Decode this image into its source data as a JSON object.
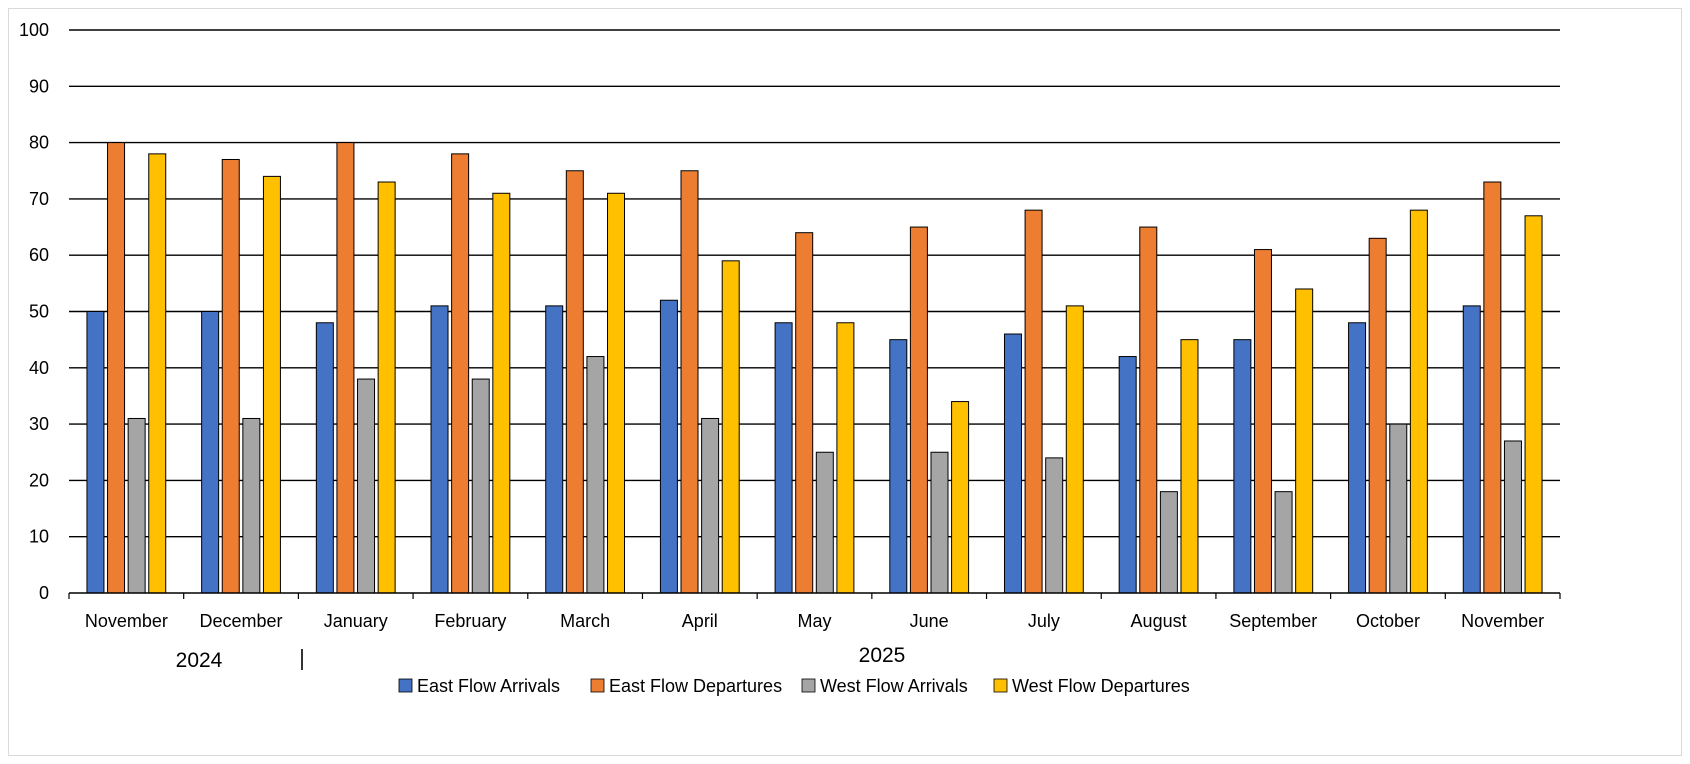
{
  "chart_data": {
    "type": "bar",
    "categories": [
      "November",
      "December",
      "January",
      "February",
      "March",
      "April",
      "May",
      "June",
      "July",
      "August",
      "September",
      "October",
      "November"
    ],
    "year_labels": [
      "2024",
      "2025"
    ],
    "series": [
      {
        "name": "East Flow Arrivals",
        "color": "#4472C4",
        "values": [
          50,
          50,
          48,
          51,
          51,
          52,
          48,
          45,
          46,
          42,
          45,
          48,
          51
        ]
      },
      {
        "name": "East Flow Departures",
        "color": "#ED7D31",
        "values": [
          80,
          77,
          80,
          78,
          75,
          75,
          64,
          65,
          68,
          65,
          61,
          63,
          73
        ]
      },
      {
        "name": "West Flow Arrivals",
        "color": "#A5A5A5",
        "values": [
          31,
          31,
          38,
          38,
          42,
          31,
          25,
          25,
          24,
          18,
          18,
          30,
          27
        ]
      },
      {
        "name": "West Flow Departures",
        "color": "#FFC000",
        "values": [
          78,
          74,
          73,
          71,
          71,
          59,
          48,
          34,
          51,
          45,
          54,
          68,
          67
        ]
      }
    ],
    "ylim": [
      0,
      100
    ],
    "yticks": [
      0,
      10,
      20,
      30,
      40,
      50,
      60,
      70,
      80,
      90,
      100
    ],
    "grid": true,
    "legend_position": "bottom"
  }
}
